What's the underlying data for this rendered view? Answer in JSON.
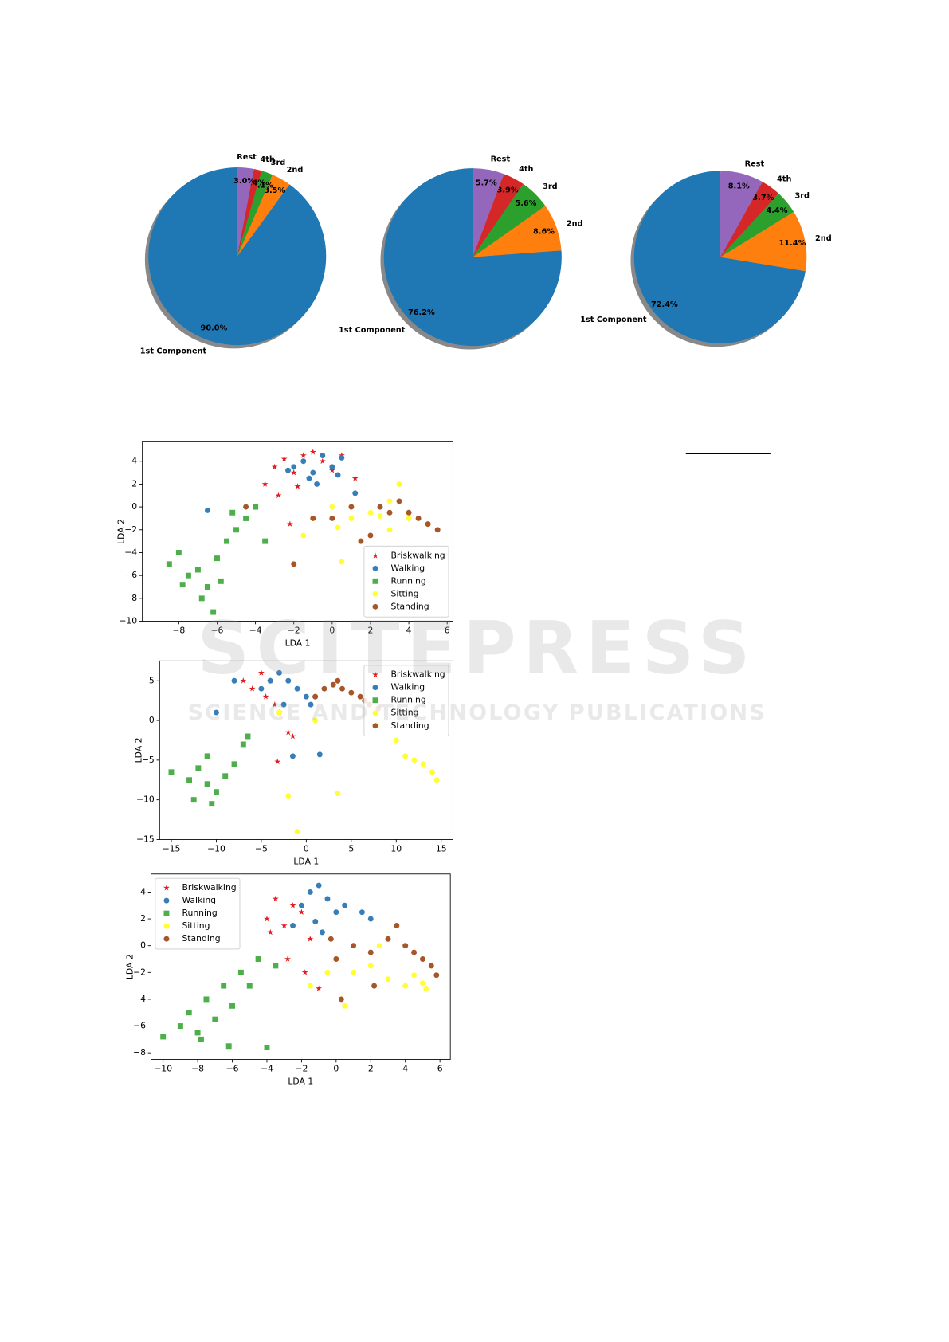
{
  "chart_data": [
    {
      "type": "pie",
      "categories": [
        "1st Component",
        "2nd",
        "3rd",
        "4th",
        "Rest"
      ],
      "values": [
        90,
        3.5,
        2.1,
        1.4,
        3
      ],
      "value_labels": [
        "90.0%",
        "3.5%",
        "2.1%",
        "1.4%",
        "3.0%"
      ],
      "colors": [
        "#1f77b4",
        "#ff7f0e",
        "#2ca02c",
        "#d62728",
        "#9467bd"
      ]
    },
    {
      "type": "pie",
      "categories": [
        "1st Component",
        "2nd",
        "3rd",
        "4th",
        "Rest"
      ],
      "values": [
        76.2,
        8.6,
        5.6,
        3.9,
        5.7
      ],
      "value_labels": [
        "76.2%",
        "8.6%",
        "5.6%",
        "3.9%",
        "5.7%"
      ],
      "colors": [
        "#1f77b4",
        "#ff7f0e",
        "#2ca02c",
        "#d62728",
        "#9467bd"
      ]
    },
    {
      "type": "pie",
      "categories": [
        "1st Component",
        "2nd",
        "3rd",
        "4th",
        "Rest"
      ],
      "values": [
        72.4,
        11.4,
        4.4,
        3.7,
        8.1
      ],
      "value_labels": [
        "72.4%",
        "11.4%",
        "4.4%",
        "3.7%",
        "8.1%"
      ],
      "colors": [
        "#1f77b4",
        "#ff7f0e",
        "#2ca02c",
        "#d62728",
        "#9467bd"
      ]
    },
    {
      "type": "scatter",
      "xlabel": "LDA 1",
      "ylabel": "LDA 2",
      "xlim": [
        -9.9,
        6.3
      ],
      "ylim": [
        -10,
        5.7
      ],
      "xticks": [
        {
          "value": -8,
          "label": "−8"
        },
        {
          "value": -6,
          "label": "−6"
        },
        {
          "value": -4,
          "label": "−4"
        },
        {
          "value": -2,
          "label": "−2"
        },
        0,
        2,
        4,
        6
      ],
      "yticks": [
        {
          "value": -10,
          "label": "−10"
        },
        {
          "value": -8,
          "label": "−8"
        },
        {
          "value": -6,
          "label": "−6"
        },
        {
          "value": -4,
          "label": "−4"
        },
        {
          "value": -2,
          "label": "−2"
        },
        0,
        2,
        4
      ],
      "legend": "lower right",
      "series": [
        {
          "name": "Briskwalking",
          "color": "#e41a1c",
          "marker": "star",
          "x": [
            -3,
            -2.5,
            -2,
            -1.5,
            -1,
            -0.5,
            0,
            -3.5,
            -2.8,
            -1.8,
            0.5,
            -2.2,
            1.2
          ],
          "y": [
            3.5,
            4.2,
            3,
            4.5,
            4.8,
            4,
            3.2,
            2,
            1,
            1.8,
            4.5,
            -1.5,
            2.5
          ]
        },
        {
          "name": "Walking",
          "color": "#377eb8",
          "marker": "circle",
          "x": [
            -2,
            -1.5,
            -1,
            -0.5,
            0,
            -1.2,
            -0.8,
            0.3,
            -2.3,
            -6.5,
            0.5,
            1.2
          ],
          "y": [
            3.5,
            4,
            3,
            4.5,
            3.5,
            2.5,
            2,
            2.8,
            3.2,
            -0.3,
            4.3,
            1.2
          ]
        },
        {
          "name": "Running",
          "color": "#4daf4a",
          "marker": "square",
          "x": [
            -8.5,
            -8,
            -7.5,
            -7,
            -6.5,
            -6,
            -5.5,
            -5,
            -4.5,
            -4,
            -6.8,
            -6.2,
            -5.8,
            -7.8,
            -5.2,
            -3.5
          ],
          "y": [
            -5,
            -4,
            -6,
            -5.5,
            -7,
            -4.5,
            -3,
            -2,
            -1,
            0,
            -8,
            -9.2,
            -6.5,
            -6.8,
            -0.5,
            -3
          ]
        },
        {
          "name": "Sitting",
          "color": "#ffff33",
          "marker": "circle",
          "x": [
            -1,
            0,
            1,
            2,
            3,
            3.5,
            4,
            5,
            -1.5,
            0.5,
            1.5,
            2.5,
            3,
            0.3
          ],
          "y": [
            -1,
            0,
            -1,
            -0.5,
            -2,
            2,
            -1,
            -1.5,
            -2.5,
            -4.8,
            -3,
            -0.8,
            0.5,
            -1.8
          ]
        },
        {
          "name": "Standing",
          "color": "#a65628",
          "marker": "circle",
          "x": [
            2.5,
            3,
            3.5,
            4,
            4.5,
            5,
            5.5,
            1,
            0,
            -1,
            2,
            1.5,
            -2,
            -4.5
          ],
          "y": [
            0,
            -0.5,
            0.5,
            -0.5,
            -1,
            -1.5,
            -2,
            0,
            -1,
            -1,
            -2.5,
            -3,
            -5,
            0
          ]
        }
      ]
    },
    {
      "type": "scatter",
      "xlabel": "LDA 1",
      "ylabel": "LDA 2",
      "xlim": [
        -16.3,
        16.3
      ],
      "ylim": [
        -15,
        7.5
      ],
      "xticks": [
        {
          "value": -15,
          "label": "−15"
        },
        {
          "value": -10,
          "label": "−10"
        },
        {
          "value": -5,
          "label": "−5"
        },
        0,
        5,
        10,
        15
      ],
      "yticks": [
        {
          "value": -15,
          "label": "−15"
        },
        {
          "value": -10,
          "label": "−10"
        },
        {
          "value": -5,
          "label": "−5"
        },
        0,
        5
      ],
      "legend": "upper right",
      "series": [
        {
          "name": "Briskwalking",
          "color": "#e41a1c",
          "marker": "star",
          "x": [
            -7,
            -6,
            -5,
            -4.5,
            -4,
            -3.5,
            -3,
            -2,
            -1.5,
            -3.2
          ],
          "y": [
            5,
            4,
            6,
            3,
            5,
            2,
            1,
            -1.5,
            -2,
            -5.2
          ]
        },
        {
          "name": "Walking",
          "color": "#377eb8",
          "marker": "circle",
          "x": [
            -5,
            -4,
            -3,
            -2,
            -1,
            0,
            -2.5,
            1.5,
            -1.5,
            -8,
            -10,
            1,
            0.5
          ],
          "y": [
            4,
            5,
            6,
            5,
            4,
            3,
            2,
            -4.3,
            -4.5,
            5,
            1,
            3,
            2
          ]
        },
        {
          "name": "Running",
          "color": "#4daf4a",
          "marker": "square",
          "x": [
            -15,
            -13,
            -12,
            -11,
            -10,
            -9,
            -8,
            -7,
            -12.5,
            -10.5,
            -11,
            -6.5
          ],
          "y": [
            -6.5,
            -7.5,
            -6,
            -8,
            -9,
            -7,
            -5.5,
            -3,
            -10,
            -10.5,
            -4.5,
            -2
          ]
        },
        {
          "name": "Sitting",
          "color": "#ffff33",
          "marker": "circle",
          "x": [
            8,
            10,
            11,
            12,
            13,
            14,
            14.5,
            -1,
            -2,
            3.5,
            1,
            -3
          ],
          "y": [
            -0.5,
            -2.5,
            -4.5,
            -5,
            -5.5,
            -6.5,
            -7.5,
            -14,
            -9.5,
            -9.2,
            0,
            1
          ]
        },
        {
          "name": "Standing",
          "color": "#a65628",
          "marker": "circle",
          "x": [
            1,
            2,
            3,
            4,
            5,
            6,
            7,
            8,
            3.5,
            6.5
          ],
          "y": [
            3,
            4,
            4.5,
            4,
            3.5,
            3,
            2,
            1.5,
            5,
            2.5
          ]
        }
      ]
    },
    {
      "type": "scatter",
      "xlabel": "LDA 1",
      "ylabel": "LDA 2",
      "xlim": [
        -10.7,
        6.6
      ],
      "ylim": [
        -8.5,
        5.35
      ],
      "xticks": [
        {
          "value": -10,
          "label": "−10"
        },
        {
          "value": -8,
          "label": "−8"
        },
        {
          "value": -6,
          "label": "−6"
        },
        {
          "value": -4,
          "label": "−4"
        },
        {
          "value": -2,
          "label": "−2"
        },
        0,
        2,
        4,
        6
      ],
      "yticks": [
        {
          "value": -8,
          "label": "−8"
        },
        {
          "value": -6,
          "label": "−6"
        },
        {
          "value": -4,
          "label": "−4"
        },
        {
          "value": -2,
          "label": "−2"
        },
        0,
        2,
        4
      ],
      "legend": "upper left",
      "series": [
        {
          "name": "Briskwalking",
          "color": "#e41a1c",
          "marker": "star",
          "x": [
            -4,
            -3.5,
            -3,
            -2.5,
            -2,
            -1.5,
            -3.8,
            -2.8,
            -1,
            -1.8
          ],
          "y": [
            2,
            3.5,
            1.5,
            3,
            2.5,
            0.5,
            1,
            -1,
            -3.2,
            -2
          ]
        },
        {
          "name": "Walking",
          "color": "#377eb8",
          "marker": "circle",
          "x": [
            -2,
            -1.5,
            -1,
            -0.5,
            0,
            0.5,
            -1.2,
            -0.8,
            1.5,
            2,
            -2.5
          ],
          "y": [
            3,
            4,
            4.5,
            3.5,
            2.5,
            3,
            1.8,
            1,
            2.5,
            2,
            1.5
          ]
        },
        {
          "name": "Running",
          "color": "#4daf4a",
          "marker": "square",
          "x": [
            -10,
            -9,
            -8.5,
            -8,
            -7.5,
            -7,
            -6.5,
            -6,
            -5.5,
            -5,
            -4.5,
            -4,
            -6.2,
            -7.8,
            -3.5
          ],
          "y": [
            -6.8,
            -6,
            -5,
            -6.5,
            -4,
            -5.5,
            -3,
            -4.5,
            -2,
            -3,
            -1,
            -7.6,
            -7.5,
            -7,
            -1.5
          ]
        },
        {
          "name": "Sitting",
          "color": "#ffff33",
          "marker": "circle",
          "x": [
            0,
            1,
            2,
            3,
            4,
            4.5,
            5,
            5.2,
            -1.5,
            0.5,
            -0.5,
            2.5
          ],
          "y": [
            -1,
            -2,
            -1.5,
            -2.5,
            -3,
            -2.2,
            -2.8,
            -3.2,
            -3,
            -4.5,
            -2,
            0
          ]
        },
        {
          "name": "Standing",
          "color": "#a65628",
          "marker": "circle",
          "x": [
            1,
            2,
            3,
            3.5,
            4,
            4.5,
            5,
            5.5,
            5.8,
            0,
            0.3,
            2.2,
            -0.3
          ],
          "y": [
            0,
            -0.5,
            0.5,
            1.5,
            0,
            -0.5,
            -1,
            -1.5,
            -2.2,
            -1,
            -4,
            -3,
            0.5
          ]
        }
      ]
    }
  ],
  "watermark": {
    "title": "SCITEPRESS",
    "subtitle": "SCIENCE AND TECHNOLOGY PUBLICATIONS"
  }
}
